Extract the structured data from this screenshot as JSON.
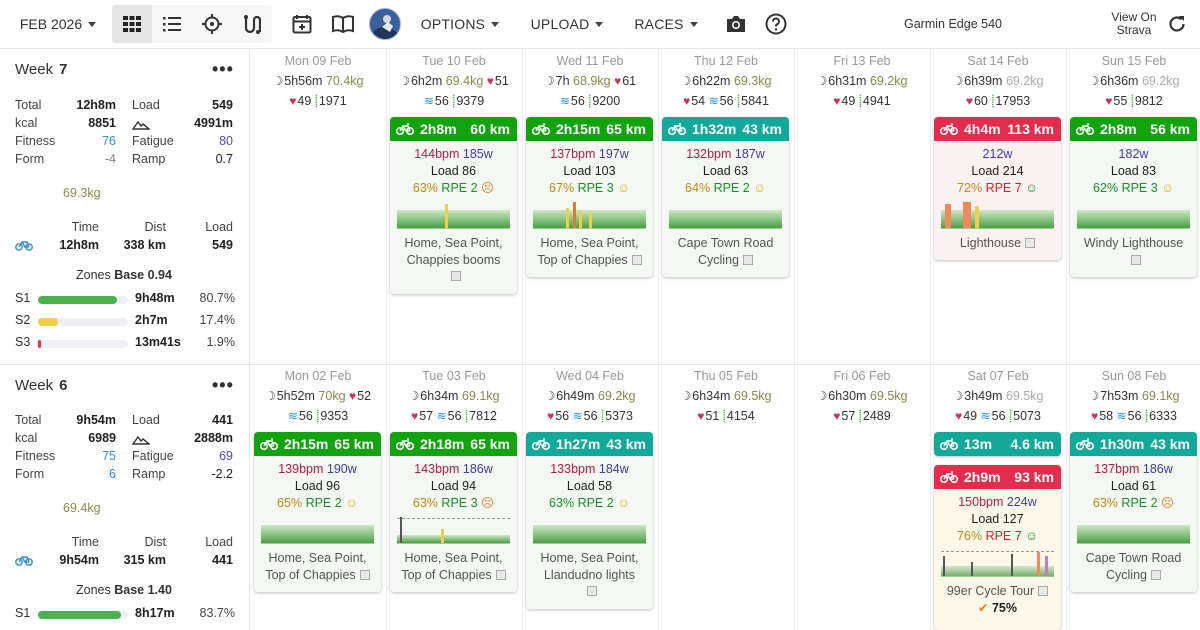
{
  "toolbar": {
    "month": "FEB 2026",
    "options": "OPTIONS",
    "upload": "UPLOAD",
    "races": "RACES",
    "device": "Garmin Edge 540",
    "strava": [
      "View On",
      "Strava"
    ]
  },
  "weeks": [
    {
      "label": "Week",
      "num": "7",
      "total": "12h8m",
      "load": "549",
      "kcal": "8851",
      "climb": "4991m",
      "fitness": "76",
      "fatigue": "80",
      "form": "-4",
      "ramp": "0.7",
      "weight": "69.3kg",
      "sport": {
        "time": "12h8m",
        "dist": "338 km",
        "load": "549"
      },
      "zones_title": "Zones",
      "zones_base": "Base 0.94",
      "zones": [
        {
          "z": "S1",
          "time": "9h48m",
          "pct": "80.7%",
          "frac": 0.807,
          "color": "#4caf50"
        },
        {
          "z": "S2",
          "time": "2h7m",
          "pct": "17.4%",
          "frac": 0.174,
          "color": "#f2cf4a"
        },
        {
          "z": "S3",
          "time": "13m41s",
          "pct": "1.9%",
          "frac": 0.019,
          "color": "#e53950"
        }
      ]
    },
    {
      "label": "Week",
      "num": "6",
      "total": "9h54m",
      "load": "441",
      "kcal": "6989",
      "climb": "2888m",
      "fitness": "75",
      "fatigue": "69",
      "form": "6",
      "ramp": "-2.2",
      "weight": "69.4kg",
      "sport": {
        "time": "9h54m",
        "dist": "315 km",
        "load": "441"
      },
      "zones_title": "Zones",
      "zones_base": "Base 1.40",
      "zones": [
        {
          "z": "S1",
          "time": "8h17m",
          "pct": "83.7%",
          "frac": 0.837,
          "color": "#4caf50"
        }
      ]
    }
  ],
  "stat_labels": {
    "total": "Total",
    "load": "Load",
    "kcal": "kcal",
    "fitness": "Fitness",
    "fatigue": "Fatigue",
    "form": "Form",
    "ramp": "Ramp",
    "time": "Time",
    "dist": "Dist"
  },
  "colors": {
    "green": "#13a310",
    "teal": "#12a99a",
    "red": "#e32d4f",
    "fitness": "#2f8fd0",
    "fatigue": "#5a49b5"
  },
  "days_w7": [
    {
      "date": "Mon 09 Feb",
      "sleep": "5h56m",
      "weight": "70.4kg",
      "hrv": "",
      "rhr": "49",
      "steps": "1971"
    },
    {
      "date": "Tue 10 Feb",
      "sleep": "6h2m",
      "weight": "69.4kg",
      "rhr_top": "51",
      "hrv": "56",
      "steps": "9379"
    },
    {
      "date": "Wed 11 Feb",
      "sleep": "7h",
      "weight": "68.9kg",
      "rhr_top": "61",
      "hrv": "56",
      "steps": "9200"
    },
    {
      "date": "Thu 12 Feb",
      "sleep": "6h22m",
      "weight": "69.3kg",
      "rhr": "54",
      "hrv": "56",
      "steps": "5841"
    },
    {
      "date": "Fri 13 Feb",
      "sleep": "6h31m",
      "weight": "69.2kg",
      "rhr": "49",
      "steps": "4941"
    },
    {
      "date": "Sat 14 Feb",
      "sleep": "6h39m",
      "weight": "69.2kg",
      "rhr": "60",
      "steps": "17953"
    },
    {
      "date": "Sun 15 Feb",
      "sleep": "6h36m",
      "weight": "69.2kg",
      "rhr": "55",
      "steps": "9812"
    }
  ],
  "days_w6": [
    {
      "date": "Mon 02 Feb",
      "sleep": "5h52m",
      "weight": "70kg",
      "rhr_top": "52",
      "hrv": "56",
      "steps": "9353"
    },
    {
      "date": "Tue 03 Feb",
      "sleep": "6h34m",
      "weight": "69.1kg",
      "rhr": "57",
      "hrv": "56",
      "steps": "7812"
    },
    {
      "date": "Wed 04 Feb",
      "sleep": "6h49m",
      "weight": "69.2kg",
      "rhr": "56",
      "hrv": "56",
      "steps": "5373"
    },
    {
      "date": "Thu 05 Feb",
      "sleep": "6h34m",
      "weight": "69.5kg",
      "rhr": "51",
      "steps": "4154"
    },
    {
      "date": "Fri 06 Feb",
      "sleep": "6h30m",
      "weight": "69.5kg",
      "rhr": "57",
      "steps": "2489"
    },
    {
      "date": "Sat 07 Feb",
      "sleep": "3h49m",
      "weight": "69.5kg",
      "rhr": "49",
      "hrv": "56",
      "steps": "5073"
    },
    {
      "date": "Sun 08 Feb",
      "sleep": "7h53m",
      "weight": "69.1kg",
      "rhr": "58",
      "hrv": "56",
      "steps": "6333"
    }
  ],
  "acts": [
    {
      "dur": "2h8m",
      "dist": "60 km",
      "hr": "144bpm",
      "pw": "185w",
      "load": "Load 86",
      "pct": "63%",
      "rpe": "RPE 2",
      "loc": [
        "Home, Sea Point,",
        "Chappies booms"
      ]
    },
    {
      "dur": "2h15m",
      "dist": "65 km",
      "hr": "137bpm",
      "pw": "197w",
      "load": "Load 103",
      "pct": "67%",
      "rpe": "RPE 3",
      "loc": [
        "Home, Sea Point,",
        "Top of Chappies"
      ]
    },
    {
      "dur": "1h32m",
      "dist": "43 km",
      "hr": "132bpm",
      "pw": "187w",
      "load": "Load 63",
      "pct": "64%",
      "rpe": "RPE 2",
      "loc": [
        "Cape Town Road",
        "Cycling"
      ]
    },
    {
      "dur": "4h4m",
      "dist": "113 km",
      "hr": "",
      "pw": "212w",
      "load": "Load 214",
      "pct": "72%",
      "rpe": "RPE 7",
      "loc": [
        "Lighthouse"
      ]
    },
    {
      "dur": "2h8m",
      "dist": "56 km",
      "hr": "",
      "pw": "182w",
      "load": "Load 83",
      "pct": "62%",
      "rpe": "RPE 3",
      "loc": [
        "Windy Lighthouse"
      ]
    },
    {
      "dur": "2h15m",
      "dist": "65 km",
      "hr": "139bpm",
      "pw": "190w",
      "load": "Load 96",
      "pct": "65%",
      "rpe": "RPE 2",
      "loc": [
        "Home, Sea Point,",
        "Top of Chappies"
      ]
    },
    {
      "dur": "2h18m",
      "dist": "65 km",
      "hr": "143bpm",
      "pw": "186w",
      "load": "Load 94",
      "pct": "63%",
      "rpe": "RPE 3",
      "loc": [
        "Home, Sea Point,",
        "Top of Chappies"
      ]
    },
    {
      "dur": "1h27m",
      "dist": "43 km",
      "hr": "133bpm",
      "pw": "184w",
      "load": "Load 58",
      "pct": "63%",
      "rpe": "RPE 2",
      "loc": [
        "Home, Sea Point,",
        "Llandudno lights"
      ]
    },
    {
      "dur": "13m",
      "dist": "4.6 km"
    },
    {
      "dur": "2h9m",
      "dist": "93 km",
      "hr": "150bpm",
      "pw": "224w",
      "load": "Load 127",
      "pct": "76%",
      "rpe": "RPE 7",
      "loc": [
        "99er Cycle Tour"
      ],
      "progress": "75%"
    },
    {
      "dur": "1h30m",
      "dist": "43 km",
      "hr": "137bpm",
      "pw": "186w",
      "load": "Load 61",
      "pct": "63%",
      "rpe": "RPE 2",
      "loc": [
        "Cape Town Road",
        "Cycling"
      ]
    }
  ]
}
